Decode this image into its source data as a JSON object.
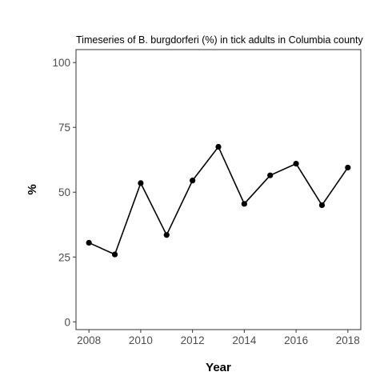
{
  "chart_data": {
    "type": "line",
    "title": "Timeseries of B. burgdorferi (%) in tick adults in Columbia county",
    "xlabel": "Year",
    "ylabel": "%",
    "x": [
      2008,
      2009,
      2010,
      2011,
      2012,
      2013,
      2014,
      2015,
      2016,
      2017,
      2018
    ],
    "series": [
      {
        "values": [
          30.5,
          26,
          53.5,
          33.5,
          54.5,
          67.5,
          45.5,
          56.5,
          61,
          45,
          59.5
        ]
      }
    ],
    "xlim": [
      2007.5,
      2018.5
    ],
    "ylim": [
      -3,
      105
    ],
    "xticks": [
      2008,
      2010,
      2012,
      2014,
      2016,
      2018
    ],
    "xtick_labels": [
      "2008",
      "2010",
      "2012",
      "2014",
      "2016",
      "2018"
    ],
    "yticks": [
      0,
      25,
      50,
      75,
      100
    ],
    "ytick_labels": [
      "0",
      "25",
      "50",
      "75",
      "100"
    ],
    "grid": false,
    "legend": "none",
    "line_color": "#000000",
    "marker_color": "#000000"
  }
}
